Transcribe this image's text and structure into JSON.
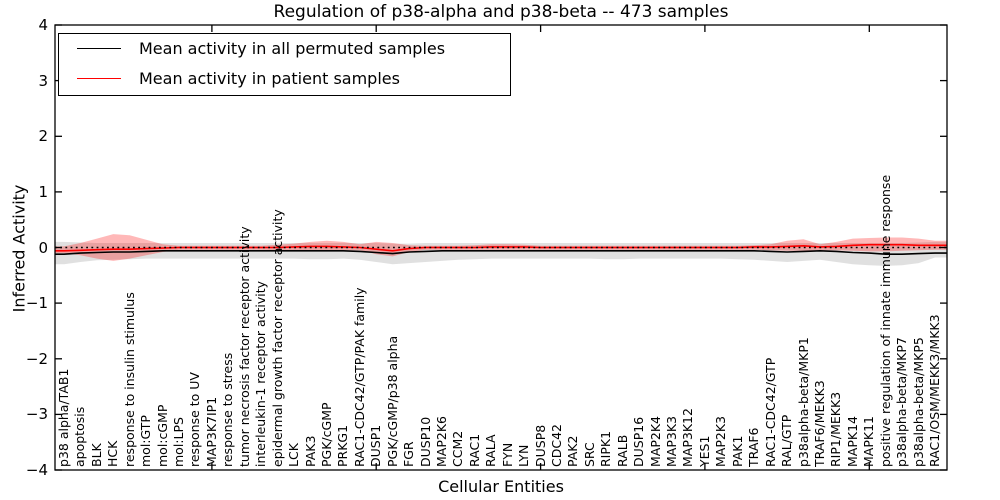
{
  "title": "Regulation of p38-alpha and p38-beta -- 473 samples",
  "axes": {
    "xlabel": "Cellular Entities",
    "ylabel": "Inferred Activity",
    "yticks": {
      "values": [
        4,
        3,
        2,
        1,
        0,
        -1,
        -2,
        -3,
        -4
      ],
      "labels": [
        "4",
        "3",
        "2",
        "1",
        "0",
        "−1",
        "−2",
        "−3",
        "−4"
      ]
    },
    "xtick_category_indices": [
      9,
      19,
      29,
      39,
      49
    ]
  },
  "legend": {
    "position": "upper left",
    "entries": [
      {
        "label": "Mean activity in all permuted samples",
        "color": "#000000"
      },
      {
        "label": "Mean activity in patient samples",
        "color": "#ff0000"
      }
    ]
  },
  "chart_data": {
    "type": "line",
    "title": "Regulation of p38-alpha and p38-beta -- 473 samples",
    "xlabel": "Cellular Entities",
    "ylabel": "Inferred Activity",
    "ylim": [
      -4,
      4
    ],
    "grid": false,
    "zero_line": {
      "style": "dotted",
      "color": "#000000",
      "y": 0
    },
    "categories": [
      "p38 alpha/TAB1",
      "apoptosis",
      "BLK",
      "HCK",
      "response to insulin stimulus",
      "mol:GTP",
      "mol:cGMP",
      "mol:LPS",
      "response to UV",
      "MAP3K7IP1",
      "response to stress",
      "tumor necrosis factor receptor activity",
      "interleukin-1 receptor activity",
      "epidermal growth factor receptor activity",
      "LCK",
      "PAK3",
      "PGK/cGMP",
      "PRKG1",
      "RAC1-CDC42/GTP/PAK family",
      "DUSP1",
      "PGK/cGMP/p38 alpha",
      "FGR",
      "DUSP10",
      "MAP2K6",
      "CCM2",
      "RAC1",
      "RALA",
      "FYN",
      "LYN",
      "DUSP8",
      "CDC42",
      "PAK2",
      "SRC",
      "RIPK1",
      "RALB",
      "DUSP16",
      "MAP2K4",
      "MAP3K3",
      "MAP3K12",
      "YES1",
      "MAP2K3",
      "PAK1",
      "TRAF6",
      "RAC1-CDC42/GTP",
      "RAL/GTP",
      "p38alpha-beta/MKP1",
      "TRAF6/MEKK3",
      "RIP1/MEKK3",
      "MAPK14",
      "MAPK11",
      "positive regulation of innate immune response",
      "p38alpha-beta/MKP7",
      "p38alpha-beta/MKP5",
      "RAC1/OSM/MEKK3/MKK3"
    ],
    "series": [
      {
        "name": "Mean activity in all permuted samples",
        "color": "#000000",
        "band_color": "#bbbbbb",
        "band_opacity": 0.45,
        "mean": [
          -0.12,
          -0.1,
          -0.09,
          -0.08,
          -0.08,
          -0.07,
          -0.06,
          -0.06,
          -0.06,
          -0.06,
          -0.06,
          -0.06,
          -0.06,
          -0.06,
          -0.06,
          -0.06,
          -0.06,
          -0.06,
          -0.07,
          -0.09,
          -0.11,
          -0.08,
          -0.07,
          -0.06,
          -0.06,
          -0.06,
          -0.06,
          -0.06,
          -0.06,
          -0.06,
          -0.06,
          -0.06,
          -0.06,
          -0.06,
          -0.06,
          -0.06,
          -0.06,
          -0.06,
          -0.06,
          -0.06,
          -0.06,
          -0.06,
          -0.06,
          -0.07,
          -0.08,
          -0.07,
          -0.06,
          -0.07,
          -0.09,
          -0.1,
          -0.12,
          -0.12,
          -0.11,
          -0.1
        ],
        "upper": [
          0.1,
          0.09,
          0.08,
          0.08,
          0.08,
          0.08,
          0.08,
          0.08,
          0.08,
          0.08,
          0.08,
          0.08,
          0.08,
          0.08,
          0.08,
          0.08,
          0.08,
          0.08,
          0.08,
          0.08,
          0.07,
          0.07,
          0.08,
          0.08,
          0.08,
          0.08,
          0.08,
          0.08,
          0.08,
          0.08,
          0.08,
          0.08,
          0.08,
          0.08,
          0.08,
          0.08,
          0.08,
          0.08,
          0.08,
          0.08,
          0.08,
          0.08,
          0.08,
          0.08,
          0.08,
          0.08,
          0.08,
          0.08,
          0.08,
          0.08,
          0.08,
          0.08,
          0.09,
          0.1
        ],
        "lower": [
          -0.3,
          -0.26,
          -0.23,
          -0.22,
          -0.21,
          -0.2,
          -0.2,
          -0.2,
          -0.2,
          -0.2,
          -0.2,
          -0.2,
          -0.2,
          -0.2,
          -0.2,
          -0.21,
          -0.21,
          -0.2,
          -0.22,
          -0.26,
          -0.3,
          -0.28,
          -0.26,
          -0.24,
          -0.22,
          -0.21,
          -0.2,
          -0.2,
          -0.2,
          -0.2,
          -0.2,
          -0.2,
          -0.2,
          -0.21,
          -0.21,
          -0.2,
          -0.2,
          -0.2,
          -0.2,
          -0.2,
          -0.2,
          -0.21,
          -0.22,
          -0.24,
          -0.26,
          -0.24,
          -0.22,
          -0.26,
          -0.3,
          -0.32,
          -0.33,
          -0.32,
          -0.28,
          -0.18
        ]
      },
      {
        "name": "Mean activity in patient samples",
        "color": "#ff0000",
        "band_color": "#ff0000",
        "band_opacity": 0.28,
        "mean": [
          -0.06,
          -0.05,
          -0.04,
          -0.03,
          -0.03,
          -0.02,
          -0.01,
          0.0,
          0.0,
          0.0,
          0.0,
          0.0,
          0.0,
          0.0,
          0.01,
          0.02,
          0.02,
          0.01,
          0.0,
          -0.03,
          -0.06,
          -0.02,
          0.0,
          0.0,
          0.0,
          0.0,
          0.01,
          0.01,
          0.01,
          0.0,
          0.0,
          0.0,
          0.0,
          0.0,
          0.0,
          0.0,
          0.0,
          0.0,
          0.0,
          0.0,
          0.0,
          0.0,
          0.01,
          0.01,
          0.02,
          0.03,
          0.01,
          0.02,
          0.04,
          0.05,
          0.05,
          0.05,
          0.04,
          0.04
        ],
        "upper": [
          0.02,
          0.08,
          0.16,
          0.24,
          0.22,
          0.14,
          0.06,
          0.03,
          0.03,
          0.03,
          0.03,
          0.03,
          0.03,
          0.05,
          0.07,
          0.1,
          0.12,
          0.1,
          0.06,
          0.1,
          0.08,
          0.04,
          0.03,
          0.03,
          0.03,
          0.04,
          0.06,
          0.06,
          0.05,
          0.03,
          0.03,
          0.03,
          0.03,
          0.03,
          0.03,
          0.03,
          0.03,
          0.03,
          0.03,
          0.03,
          0.03,
          0.03,
          0.04,
          0.06,
          0.12,
          0.15,
          0.06,
          0.1,
          0.16,
          0.17,
          0.18,
          0.18,
          0.16,
          0.12
        ],
        "lower": [
          -0.1,
          -0.14,
          -0.2,
          -0.24,
          -0.2,
          -0.14,
          -0.08,
          -0.04,
          -0.04,
          -0.04,
          -0.04,
          -0.04,
          -0.04,
          -0.05,
          -0.05,
          -0.06,
          -0.06,
          -0.05,
          -0.05,
          -0.12,
          -0.16,
          -0.08,
          -0.04,
          -0.04,
          -0.04,
          -0.04,
          -0.04,
          -0.04,
          -0.04,
          -0.04,
          -0.04,
          -0.04,
          -0.04,
          -0.04,
          -0.04,
          -0.04,
          -0.04,
          -0.04,
          -0.04,
          -0.04,
          -0.04,
          -0.04,
          -0.04,
          -0.05,
          -0.06,
          -0.06,
          -0.05,
          -0.05,
          -0.06,
          -0.07,
          -0.07,
          -0.06,
          -0.05,
          -0.04
        ]
      }
    ],
    "legend_entries": [
      "Mean activity in all permuted samples",
      "Mean activity in patient samples"
    ]
  }
}
